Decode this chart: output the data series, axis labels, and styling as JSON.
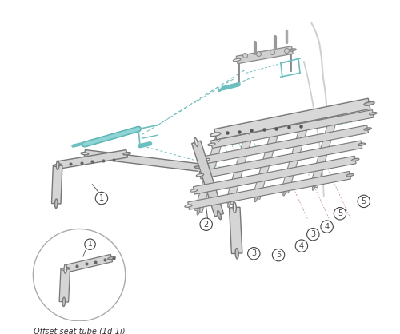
{
  "background_color": "#ffffff",
  "tube_fill": "#d8d8d8",
  "tube_edge": "#888888",
  "tube_dark": "#555555",
  "teal": "#6abfbf",
  "teal_light": "#8fd0d0",
  "red_dim": "#cc8888",
  "callout_edge": "#555555",
  "text_color": "#333333",
  "subtitle": "Offset seat tube (1d-1i)"
}
